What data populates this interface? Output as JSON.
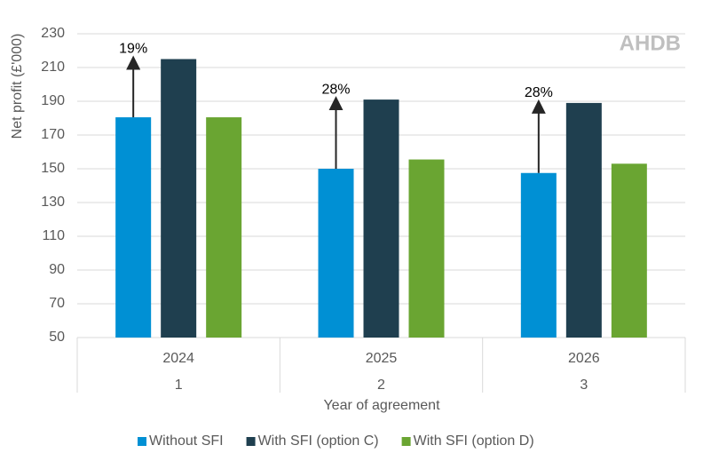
{
  "chart_data": {
    "type": "bar",
    "y_label": "Net profit (£'000)",
    "x_label": "Year of agreement",
    "watermark": "AHDB",
    "categories": [
      "2024",
      "2025",
      "2026"
    ],
    "sub_categories": [
      "1",
      "2",
      "3"
    ],
    "series": [
      {
        "name": "Without SFI",
        "color": "#0090d4",
        "values": [
          180.5,
          150,
          147.5
        ]
      },
      {
        "name": "With SFI (option C)",
        "color": "#1f3f4f",
        "values": [
          215,
          191,
          189
        ]
      },
      {
        "name": "With SFI (option D)",
        "color": "#6aa532",
        "values": [
          180.5,
          155.5,
          153
        ]
      }
    ],
    "annotations": [
      "19%",
      "28%",
      "28%"
    ],
    "ylim": [
      50,
      230
    ],
    "yticks": [
      50,
      70,
      90,
      110,
      130,
      150,
      170,
      190,
      210,
      230
    ],
    "grid": true
  }
}
